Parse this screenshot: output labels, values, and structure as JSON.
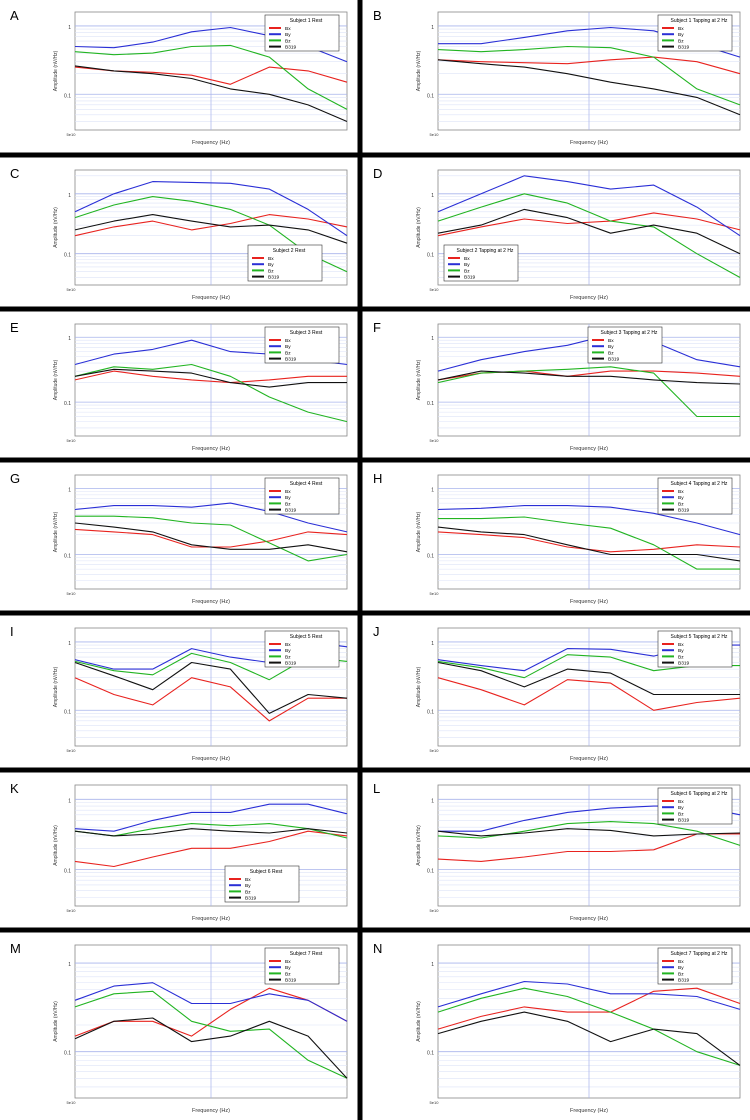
{
  "colors": {
    "Bx": "#e8231f",
    "By": "#2a2fd6",
    "Bz": "#22b422",
    "B319": "#111111",
    "grid_major": "#a8b4ec",
    "grid_minor": "#dde3f8",
    "frame": "#000000"
  },
  "axes_text": {
    "xlabel": "Frequency (Hz)",
    "ylabel": "Amplitude (nV/Hz)",
    "ytick_1": "1",
    "ytick_01": "0.1",
    "xtick_first": "5e10"
  },
  "chart_data": [
    {
      "letter": "A",
      "type": "line",
      "legend_title": "Subject 1 Rest",
      "legend_position": "top-right",
      "x": [
        0,
        1,
        2,
        3,
        4,
        5,
        6,
        7
      ],
      "ylim": [
        0.03,
        1.6
      ],
      "yscale": "log",
      "grid": true,
      "series": [
        {
          "name": "Bx",
          "values": [
            0.25,
            0.22,
            0.21,
            0.19,
            0.14,
            0.25,
            0.22,
            0.15
          ]
        },
        {
          "name": "By",
          "values": [
            0.5,
            0.48,
            0.58,
            0.82,
            0.95,
            0.72,
            0.5,
            0.3
          ]
        },
        {
          "name": "Bz",
          "values": [
            0.42,
            0.38,
            0.4,
            0.5,
            0.52,
            0.35,
            0.12,
            0.06
          ]
        },
        {
          "name": "B319",
          "values": [
            0.26,
            0.22,
            0.2,
            0.17,
            0.12,
            0.1,
            0.07,
            0.04
          ]
        }
      ]
    },
    {
      "letter": "B",
      "type": "line",
      "legend_title": "Subject 1 Tapping at 2 Hz",
      "legend_position": "top-right",
      "x": [
        0,
        1,
        2,
        3,
        4,
        5,
        6,
        7
      ],
      "ylim": [
        0.03,
        1.6
      ],
      "yscale": "log",
      "grid": true,
      "series": [
        {
          "name": "Bx",
          "values": [
            0.32,
            0.3,
            0.29,
            0.28,
            0.32,
            0.35,
            0.3,
            0.2
          ]
        },
        {
          "name": "By",
          "values": [
            0.55,
            0.55,
            0.68,
            0.85,
            0.95,
            0.85,
            0.55,
            0.35
          ]
        },
        {
          "name": "Bz",
          "values": [
            0.45,
            0.42,
            0.45,
            0.5,
            0.48,
            0.35,
            0.12,
            0.07
          ]
        },
        {
          "name": "B319",
          "values": [
            0.32,
            0.28,
            0.25,
            0.2,
            0.15,
            0.12,
            0.09,
            0.05
          ]
        }
      ]
    },
    {
      "letter": "C",
      "type": "line",
      "legend_title": "Subject 2 Rest",
      "legend_position": "bottom-right",
      "x": [
        0,
        1,
        2,
        3,
        4,
        5,
        6,
        7
      ],
      "ylim": [
        0.03,
        2.5
      ],
      "yscale": "log",
      "grid": true,
      "series": [
        {
          "name": "Bx",
          "values": [
            0.2,
            0.28,
            0.35,
            0.25,
            0.32,
            0.45,
            0.38,
            0.28
          ]
        },
        {
          "name": "By",
          "values": [
            0.5,
            1.0,
            1.6,
            1.55,
            1.5,
            1.2,
            0.55,
            0.2
          ]
        },
        {
          "name": "Bz",
          "values": [
            0.4,
            0.65,
            0.9,
            0.75,
            0.55,
            0.3,
            0.1,
            0.05
          ]
        },
        {
          "name": "B319",
          "values": [
            0.25,
            0.35,
            0.45,
            0.35,
            0.28,
            0.3,
            0.25,
            0.15
          ]
        }
      ]
    },
    {
      "letter": "D",
      "type": "line",
      "legend_title": "Subject 2 Tapping at 2 Hz",
      "legend_position": "bottom-left",
      "x": [
        0,
        1,
        2,
        3,
        4,
        5,
        6,
        7
      ],
      "ylim": [
        0.03,
        2.5
      ],
      "yscale": "log",
      "grid": true,
      "series": [
        {
          "name": "Bx",
          "values": [
            0.2,
            0.28,
            0.38,
            0.32,
            0.35,
            0.48,
            0.38,
            0.25
          ]
        },
        {
          "name": "By",
          "values": [
            0.5,
            1.0,
            2.0,
            1.6,
            1.2,
            1.4,
            0.6,
            0.2
          ]
        },
        {
          "name": "Bz",
          "values": [
            0.35,
            0.6,
            1.0,
            0.7,
            0.35,
            0.28,
            0.1,
            0.04
          ]
        },
        {
          "name": "B319",
          "values": [
            0.22,
            0.3,
            0.55,
            0.4,
            0.22,
            0.3,
            0.22,
            0.1
          ]
        }
      ]
    },
    {
      "letter": "E",
      "type": "line",
      "legend_title": "Subject 3 Rest",
      "legend_position": "top-right",
      "x": [
        0,
        1,
        2,
        3,
        4,
        5,
        6,
        7
      ],
      "ylim": [
        0.03,
        1.6
      ],
      "yscale": "log",
      "grid": true,
      "series": [
        {
          "name": "Bx",
          "values": [
            0.22,
            0.3,
            0.25,
            0.22,
            0.2,
            0.22,
            0.25,
            0.25
          ]
        },
        {
          "name": "By",
          "values": [
            0.38,
            0.55,
            0.65,
            0.9,
            0.6,
            0.55,
            0.45,
            0.38
          ]
        },
        {
          "name": "Bz",
          "values": [
            0.25,
            0.35,
            0.32,
            0.38,
            0.25,
            0.12,
            0.07,
            0.05
          ]
        },
        {
          "name": "B319",
          "values": [
            0.25,
            0.32,
            0.3,
            0.28,
            0.2,
            0.17,
            0.2,
            0.2
          ]
        }
      ]
    },
    {
      "letter": "F",
      "type": "line",
      "legend_title": "Subject 3 Tapping at 2 Hz",
      "legend_position": "top-left",
      "x": [
        0,
        1,
        2,
        3,
        4,
        5,
        6,
        7
      ],
      "ylim": [
        0.03,
        1.6
      ],
      "yscale": "log",
      "grid": true,
      "series": [
        {
          "name": "Bx",
          "values": [
            0.22,
            0.28,
            0.3,
            0.25,
            0.3,
            0.3,
            0.28,
            0.25
          ]
        },
        {
          "name": "By",
          "values": [
            0.3,
            0.45,
            0.6,
            0.75,
            1.1,
            0.85,
            0.45,
            0.35
          ]
        },
        {
          "name": "Bz",
          "values": [
            0.2,
            0.28,
            0.3,
            0.32,
            0.35,
            0.28,
            0.06,
            0.06
          ]
        },
        {
          "name": "B319",
          "values": [
            0.22,
            0.3,
            0.28,
            0.25,
            0.25,
            0.22,
            0.2,
            0.19
          ]
        }
      ]
    },
    {
      "letter": "G",
      "type": "line",
      "legend_title": "Subject 4 Rest",
      "legend_position": "top-right",
      "x": [
        0,
        1,
        2,
        3,
        4,
        5,
        6,
        7
      ],
      "ylim": [
        0.03,
        1.6
      ],
      "yscale": "log",
      "grid": true,
      "series": [
        {
          "name": "Bx",
          "values": [
            0.24,
            0.22,
            0.2,
            0.13,
            0.13,
            0.16,
            0.22,
            0.2
          ]
        },
        {
          "name": "By",
          "values": [
            0.48,
            0.55,
            0.55,
            0.52,
            0.6,
            0.45,
            0.3,
            0.22
          ]
        },
        {
          "name": "Bz",
          "values": [
            0.38,
            0.38,
            0.36,
            0.3,
            0.28,
            0.15,
            0.08,
            0.1
          ]
        },
        {
          "name": "B319",
          "values": [
            0.3,
            0.26,
            0.22,
            0.14,
            0.12,
            0.12,
            0.14,
            0.11
          ]
        }
      ]
    },
    {
      "letter": "H",
      "type": "line",
      "legend_title": "Subject 4 Tapping at 2 Hz",
      "legend_position": "top-right",
      "x": [
        0,
        1,
        2,
        3,
        4,
        5,
        6,
        7
      ],
      "ylim": [
        0.03,
        1.6
      ],
      "yscale": "log",
      "grid": true,
      "series": [
        {
          "name": "Bx",
          "values": [
            0.22,
            0.2,
            0.18,
            0.13,
            0.11,
            0.12,
            0.14,
            0.13
          ]
        },
        {
          "name": "By",
          "values": [
            0.48,
            0.5,
            0.55,
            0.55,
            0.52,
            0.42,
            0.3,
            0.2
          ]
        },
        {
          "name": "Bz",
          "values": [
            0.35,
            0.35,
            0.37,
            0.3,
            0.25,
            0.14,
            0.06,
            0.06
          ]
        },
        {
          "name": "B319",
          "values": [
            0.26,
            0.22,
            0.2,
            0.14,
            0.1,
            0.1,
            0.1,
            0.08
          ]
        }
      ]
    },
    {
      "letter": "I",
      "type": "line",
      "legend_title": "Subject 5 Rest",
      "legend_position": "top-right",
      "x": [
        0,
        1,
        2,
        3,
        4,
        5,
        6,
        7
      ],
      "ylim": [
        0.03,
        1.6
      ],
      "yscale": "log",
      "grid": true,
      "series": [
        {
          "name": "Bx",
          "values": [
            0.3,
            0.17,
            0.12,
            0.3,
            0.22,
            0.07,
            0.15,
            0.15
          ]
        },
        {
          "name": "By",
          "values": [
            0.55,
            0.4,
            0.4,
            0.8,
            0.6,
            0.5,
            1.0,
            0.85
          ]
        },
        {
          "name": "Bz",
          "values": [
            0.52,
            0.38,
            0.33,
            0.68,
            0.5,
            0.28,
            0.6,
            0.52
          ]
        },
        {
          "name": "B319",
          "values": [
            0.5,
            0.32,
            0.2,
            0.5,
            0.4,
            0.09,
            0.17,
            0.15
          ]
        }
      ]
    },
    {
      "letter": "J",
      "type": "line",
      "legend_title": "Subject 5 Tapping at 2 Hz",
      "legend_position": "top-right",
      "x": [
        0,
        1,
        2,
        3,
        4,
        5,
        6,
        7
      ],
      "ylim": [
        0.03,
        1.6
      ],
      "yscale": "log",
      "grid": true,
      "series": [
        {
          "name": "Bx",
          "values": [
            0.3,
            0.2,
            0.12,
            0.28,
            0.25,
            0.1,
            0.13,
            0.15
          ]
        },
        {
          "name": "By",
          "values": [
            0.55,
            0.45,
            0.38,
            0.8,
            0.78,
            0.62,
            0.9,
            0.9
          ]
        },
        {
          "name": "Bz",
          "values": [
            0.52,
            0.42,
            0.3,
            0.65,
            0.6,
            0.38,
            0.45,
            0.45
          ]
        },
        {
          "name": "B319",
          "values": [
            0.5,
            0.38,
            0.22,
            0.4,
            0.35,
            0.17,
            0.17,
            0.17
          ]
        }
      ]
    },
    {
      "letter": "K",
      "type": "line",
      "legend_title": "Subject 6 Rest",
      "legend_position": "bottom-right",
      "x": [
        0,
        1,
        2,
        3,
        4,
        5,
        6,
        7
      ],
      "ylim": [
        0.03,
        1.6
      ],
      "yscale": "log",
      "grid": true,
      "series": [
        {
          "name": "Bx",
          "values": [
            0.13,
            0.11,
            0.15,
            0.2,
            0.2,
            0.25,
            0.35,
            0.3
          ]
        },
        {
          "name": "By",
          "values": [
            0.38,
            0.35,
            0.5,
            0.65,
            0.65,
            0.85,
            0.85,
            0.62
          ]
        },
        {
          "name": "Bz",
          "values": [
            0.35,
            0.3,
            0.38,
            0.45,
            0.42,
            0.45,
            0.38,
            0.28
          ]
        },
        {
          "name": "B319",
          "values": [
            0.35,
            0.3,
            0.32,
            0.38,
            0.35,
            0.33,
            0.38,
            0.33
          ]
        }
      ]
    },
    {
      "letter": "L",
      "type": "line",
      "legend_title": "Subject 6 Tapping at 2 Hz",
      "legend_position": "top-right",
      "x": [
        0,
        1,
        2,
        3,
        4,
        5,
        6,
        7
      ],
      "ylim": [
        0.03,
        1.6
      ],
      "yscale": "log",
      "grid": true,
      "series": [
        {
          "name": "Bx",
          "values": [
            0.14,
            0.13,
            0.15,
            0.18,
            0.18,
            0.19,
            0.32,
            0.32
          ]
        },
        {
          "name": "By",
          "values": [
            0.35,
            0.35,
            0.5,
            0.65,
            0.75,
            0.8,
            0.8,
            0.6
          ]
        },
        {
          "name": "Bz",
          "values": [
            0.3,
            0.28,
            0.35,
            0.45,
            0.48,
            0.45,
            0.35,
            0.22
          ]
        },
        {
          "name": "B319",
          "values": [
            0.35,
            0.3,
            0.33,
            0.38,
            0.36,
            0.3,
            0.32,
            0.33
          ]
        }
      ]
    },
    {
      "letter": "M",
      "type": "line",
      "legend_title": "Subject 7 Rest",
      "legend_position": "top-right",
      "x": [
        0,
        1,
        2,
        3,
        4,
        5,
        6,
        7
      ],
      "ylim": [
        0.03,
        1.6
      ],
      "yscale": "log",
      "grid": true,
      "series": [
        {
          "name": "Bx",
          "values": [
            0.15,
            0.22,
            0.22,
            0.15,
            0.3,
            0.52,
            0.38,
            0.22
          ]
        },
        {
          "name": "By",
          "values": [
            0.38,
            0.55,
            0.6,
            0.35,
            0.35,
            0.45,
            0.38,
            0.22
          ]
        },
        {
          "name": "Bz",
          "values": [
            0.32,
            0.45,
            0.48,
            0.22,
            0.17,
            0.18,
            0.08,
            0.05
          ]
        },
        {
          "name": "B319",
          "values": [
            0.14,
            0.22,
            0.24,
            0.13,
            0.15,
            0.22,
            0.15,
            0.05
          ]
        }
      ]
    },
    {
      "letter": "N",
      "type": "line",
      "legend_title": "Subject 7 Tapping at 2 Hz",
      "legend_position": "top-right",
      "x": [
        0,
        1,
        2,
        3,
        4,
        5,
        6,
        7
      ],
      "ylim": [
        0.03,
        1.6
      ],
      "yscale": "log",
      "grid": true,
      "series": [
        {
          "name": "Bx",
          "values": [
            0.18,
            0.25,
            0.32,
            0.28,
            0.28,
            0.48,
            0.52,
            0.35
          ]
        },
        {
          "name": "By",
          "values": [
            0.32,
            0.45,
            0.62,
            0.58,
            0.45,
            0.45,
            0.42,
            0.3
          ]
        },
        {
          "name": "Bz",
          "values": [
            0.28,
            0.4,
            0.52,
            0.42,
            0.28,
            0.18,
            0.1,
            0.07
          ]
        },
        {
          "name": "B319",
          "values": [
            0.16,
            0.22,
            0.28,
            0.22,
            0.13,
            0.18,
            0.16,
            0.07
          ]
        }
      ]
    }
  ]
}
